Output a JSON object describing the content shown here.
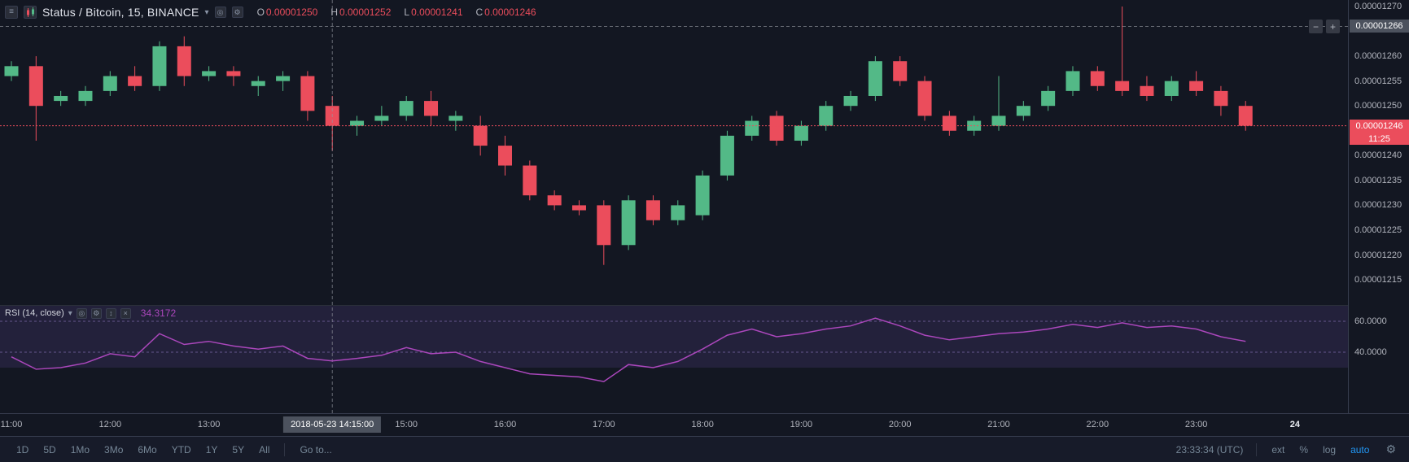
{
  "colors": {
    "background": "#131722",
    "up": "#53b987",
    "down": "#eb4d5c",
    "rsi_line": "#ab47bc",
    "rsi_fill": "rgba(126,87,194,0.16)",
    "accent_blue": "#2196f3",
    "crosshair_label_bg": "#4c525e"
  },
  "legend": {
    "title": "Status / Bitcoin, 15, BINANCE",
    "ohlc": [
      {
        "label": "O",
        "value": "0.00001250"
      },
      {
        "label": "H",
        "value": "0.00001252"
      },
      {
        "label": "L",
        "value": "0.00001241"
      },
      {
        "label": "C",
        "value": "0.00001246"
      }
    ]
  },
  "rsi_panel": {
    "label": "RSI (14, close)",
    "value": "34.3172",
    "levels": [
      "60.0000",
      "40.0000"
    ]
  },
  "price_axis": {
    "labels": [
      "0.00001270",
      "0.00001260",
      "0.00001255",
      "0.00001250",
      "0.00001240",
      "0.00001235",
      "0.00001230",
      "0.00001225",
      "0.00001220",
      "0.00001215"
    ],
    "crosshair_price": "0.00001266",
    "current_price": "0.00001246",
    "countdown": "11:25"
  },
  "time_axis": {
    "labels": [
      "11:00",
      "12:00",
      "13:00",
      "15:00",
      "16:00",
      "17:00",
      "18:00",
      "19:00",
      "20:00",
      "21:00",
      "22:00",
      "23:00",
      "24"
    ],
    "crosshair_time": "2018-05-23 14:15:00"
  },
  "toolbar": {
    "ranges": [
      "1D",
      "5D",
      "1Mo",
      "3Mo",
      "6Mo",
      "YTD",
      "1Y",
      "5Y",
      "All"
    ],
    "goto": "Go to...",
    "clock": "23:33:34 (UTC)",
    "ext": "ext",
    "percent": "%",
    "log": "log",
    "auto": "auto"
  },
  "chart_data": {
    "type": "candlestick",
    "title": "Status / Bitcoin, 15, BINANCE",
    "interval_minutes": 15,
    "date": "2018-05-23",
    "price_unit": 1e-08,
    "x_range_hours": [
      11,
      24.6
    ],
    "price_axis_range": [
      1213,
      1271
    ],
    "last_price": 1246,
    "crosshair": {
      "time": "14:15",
      "price": 1266
    },
    "candles": [
      [
        "11:00",
        1256,
        1259,
        1255,
        1258
      ],
      [
        "11:15",
        1258,
        1260,
        1243,
        1250
      ],
      [
        "11:30",
        1251,
        1253,
        1250,
        1252
      ],
      [
        "11:45",
        1251,
        1254,
        1250,
        1253
      ],
      [
        "12:00",
        1253,
        1257,
        1252,
        1256
      ],
      [
        "12:15",
        1256,
        1258,
        1253,
        1254
      ],
      [
        "12:30",
        1254,
        1263,
        1253,
        1262
      ],
      [
        "12:45",
        1262,
        1264,
        1254,
        1256
      ],
      [
        "13:00",
        1256,
        1258,
        1255,
        1257
      ],
      [
        "13:15",
        1257,
        1258,
        1254,
        1256
      ],
      [
        "13:30",
        1254,
        1256,
        1252,
        1255
      ],
      [
        "13:45",
        1255,
        1257,
        1253,
        1256
      ],
      [
        "14:00",
        1256,
        1257,
        1247,
        1249
      ],
      [
        "14:15",
        1250,
        1252,
        1241,
        1246
      ],
      [
        "14:30",
        1246,
        1248,
        1244,
        1247
      ],
      [
        "14:45",
        1247,
        1250,
        1246,
        1248
      ],
      [
        "15:00",
        1248,
        1252,
        1247,
        1251
      ],
      [
        "15:15",
        1251,
        1253,
        1246,
        1248
      ],
      [
        "15:30",
        1247,
        1249,
        1245,
        1248
      ],
      [
        "15:45",
        1246,
        1248,
        1240,
        1242
      ],
      [
        "16:00",
        1242,
        1244,
        1236,
        1238
      ],
      [
        "16:15",
        1238,
        1239,
        1231,
        1232
      ],
      [
        "16:30",
        1232,
        1233,
        1229,
        1230
      ],
      [
        "16:45",
        1230,
        1231,
        1228,
        1229
      ],
      [
        "17:00",
        1230,
        1231,
        1218,
        1222
      ],
      [
        "17:15",
        1222,
        1232,
        1221,
        1231
      ],
      [
        "17:30",
        1231,
        1232,
        1226,
        1227
      ],
      [
        "17:45",
        1227,
        1231,
        1226,
        1230
      ],
      [
        "18:00",
        1228,
        1237,
        1227,
        1236
      ],
      [
        "18:15",
        1236,
        1245,
        1235,
        1244
      ],
      [
        "18:30",
        1244,
        1248,
        1243,
        1247
      ],
      [
        "18:45",
        1248,
        1249,
        1242,
        1243
      ],
      [
        "19:00",
        1243,
        1247,
        1242,
        1246
      ],
      [
        "19:15",
        1246,
        1251,
        1245,
        1250
      ],
      [
        "19:30",
        1250,
        1253,
        1249,
        1252
      ],
      [
        "19:45",
        1252,
        1260,
        1251,
        1259
      ],
      [
        "20:00",
        1259,
        1260,
        1254,
        1255
      ],
      [
        "20:15",
        1255,
        1256,
        1247,
        1248
      ],
      [
        "20:30",
        1248,
        1249,
        1244,
        1245
      ],
      [
        "20:45",
        1245,
        1248,
        1244,
        1247
      ],
      [
        "21:00",
        1246,
        1256,
        1245,
        1248
      ],
      [
        "21:15",
        1248,
        1251,
        1247,
        1250
      ],
      [
        "21:30",
        1250,
        1254,
        1249,
        1253
      ],
      [
        "21:45",
        1253,
        1258,
        1252,
        1257
      ],
      [
        "22:00",
        1257,
        1258,
        1253,
        1254
      ],
      [
        "22:15",
        1255,
        1270,
        1252,
        1253
      ],
      [
        "22:30",
        1254,
        1256,
        1251,
        1252
      ],
      [
        "22:45",
        1252,
        1256,
        1251,
        1255
      ],
      [
        "23:00",
        1255,
        1257,
        1252,
        1253
      ],
      [
        "23:15",
        1253,
        1254,
        1248,
        1250
      ],
      [
        "23:30",
        1250,
        1251,
        1245,
        1246
      ]
    ],
    "rsi": {
      "period": 14,
      "source": "close",
      "current": 34.3172,
      "bands": [
        60,
        40
      ],
      "fill_range": [
        70,
        30
      ],
      "values": [
        37,
        29,
        30,
        33,
        39,
        37,
        52,
        45,
        47,
        44,
        42,
        44,
        36,
        34.32,
        36,
        38,
        43,
        39,
        40,
        34,
        30,
        26,
        25,
        24,
        21,
        32,
        30,
        34,
        42,
        51,
        55,
        50,
        52,
        55,
        57,
        62,
        57,
        51,
        48,
        50,
        52,
        53,
        55,
        58,
        56,
        59,
        56,
        57,
        55,
        50,
        47
      ]
    }
  }
}
